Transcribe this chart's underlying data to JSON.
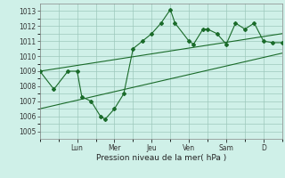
{
  "background_color": "#cff0e8",
  "grid_color": "#9dc8bc",
  "line_color": "#1a6b2a",
  "title": "Pression niveau de la mer( hPa )",
  "ylim": [
    1004.5,
    1013.5
  ],
  "yticks": [
    1005,
    1006,
    1007,
    1008,
    1009,
    1010,
    1011,
    1012,
    1013
  ],
  "x_day_labels": [
    "Lun",
    "Mer",
    "Jeu",
    "Ven",
    "Sam",
    "D"
  ],
  "x_day_positions": [
    16,
    32,
    48,
    64,
    80,
    96
  ],
  "xlim": [
    0,
    104
  ],
  "main_line_x": [
    0,
    6,
    12,
    16,
    18,
    22,
    26,
    28,
    32,
    36,
    40,
    44,
    48,
    52,
    56,
    58,
    64,
    66,
    70,
    72,
    76,
    80,
    84,
    88,
    92,
    96,
    100,
    104
  ],
  "main_line_y": [
    1009.0,
    1007.8,
    1009.0,
    1009.0,
    1007.3,
    1007.0,
    1006.0,
    1005.8,
    1006.5,
    1007.5,
    1010.5,
    1011.0,
    1011.5,
    1012.2,
    1013.1,
    1012.2,
    1011.0,
    1010.8,
    1011.8,
    1011.8,
    1011.5,
    1010.8,
    1012.2,
    1011.8,
    1012.2,
    1011.0,
    1010.9,
    1010.9
  ],
  "upper_line_x": [
    0,
    104
  ],
  "upper_line_y": [
    1009.0,
    1011.5
  ],
  "lower_line_x": [
    0,
    104
  ],
  "lower_line_y": [
    1006.5,
    1010.2
  ],
  "figsize": [
    3.2,
    2.0
  ],
  "dpi": 100
}
